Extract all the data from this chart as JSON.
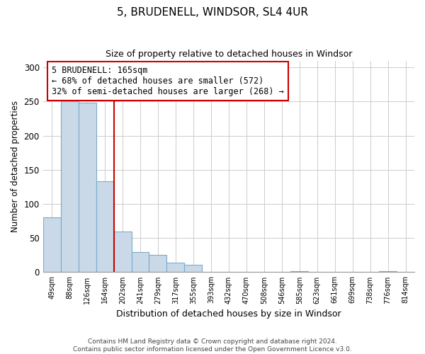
{
  "title": "5, BRUDENELL, WINDSOR, SL4 4UR",
  "subtitle": "Size of property relative to detached houses in Windsor",
  "xlabel": "Distribution of detached houses by size in Windsor",
  "ylabel": "Number of detached properties",
  "bar_color": "#c9d9e8",
  "bar_edge_color": "#7aaBcc",
  "categories": [
    "49sqm",
    "88sqm",
    "126sqm",
    "164sqm",
    "202sqm",
    "241sqm",
    "279sqm",
    "317sqm",
    "355sqm",
    "393sqm",
    "432sqm",
    "470sqm",
    "508sqm",
    "546sqm",
    "585sqm",
    "623sqm",
    "661sqm",
    "699sqm",
    "738sqm",
    "776sqm",
    "814sqm"
  ],
  "values": [
    80,
    250,
    248,
    133,
    60,
    30,
    25,
    14,
    11,
    0,
    0,
    0,
    0,
    0,
    2,
    0,
    0,
    0,
    0,
    2,
    0
  ],
  "ylim": [
    0,
    310
  ],
  "yticks": [
    0,
    50,
    100,
    150,
    200,
    250,
    300
  ],
  "vline_color": "#cc0000",
  "annotation_title": "5 BRUDENELL: 165sqm",
  "annotation_line1": "← 68% of detached houses are smaller (572)",
  "annotation_line2": "32% of semi-detached houses are larger (268) →",
  "annotation_box_color": "#ffffff",
  "annotation_box_edge": "#cc0000",
  "footer1": "Contains HM Land Registry data © Crown copyright and database right 2024.",
  "footer2": "Contains public sector information licensed under the Open Government Licence v3.0.",
  "bg_color": "#ffffff",
  "grid_color": "#cccccc"
}
